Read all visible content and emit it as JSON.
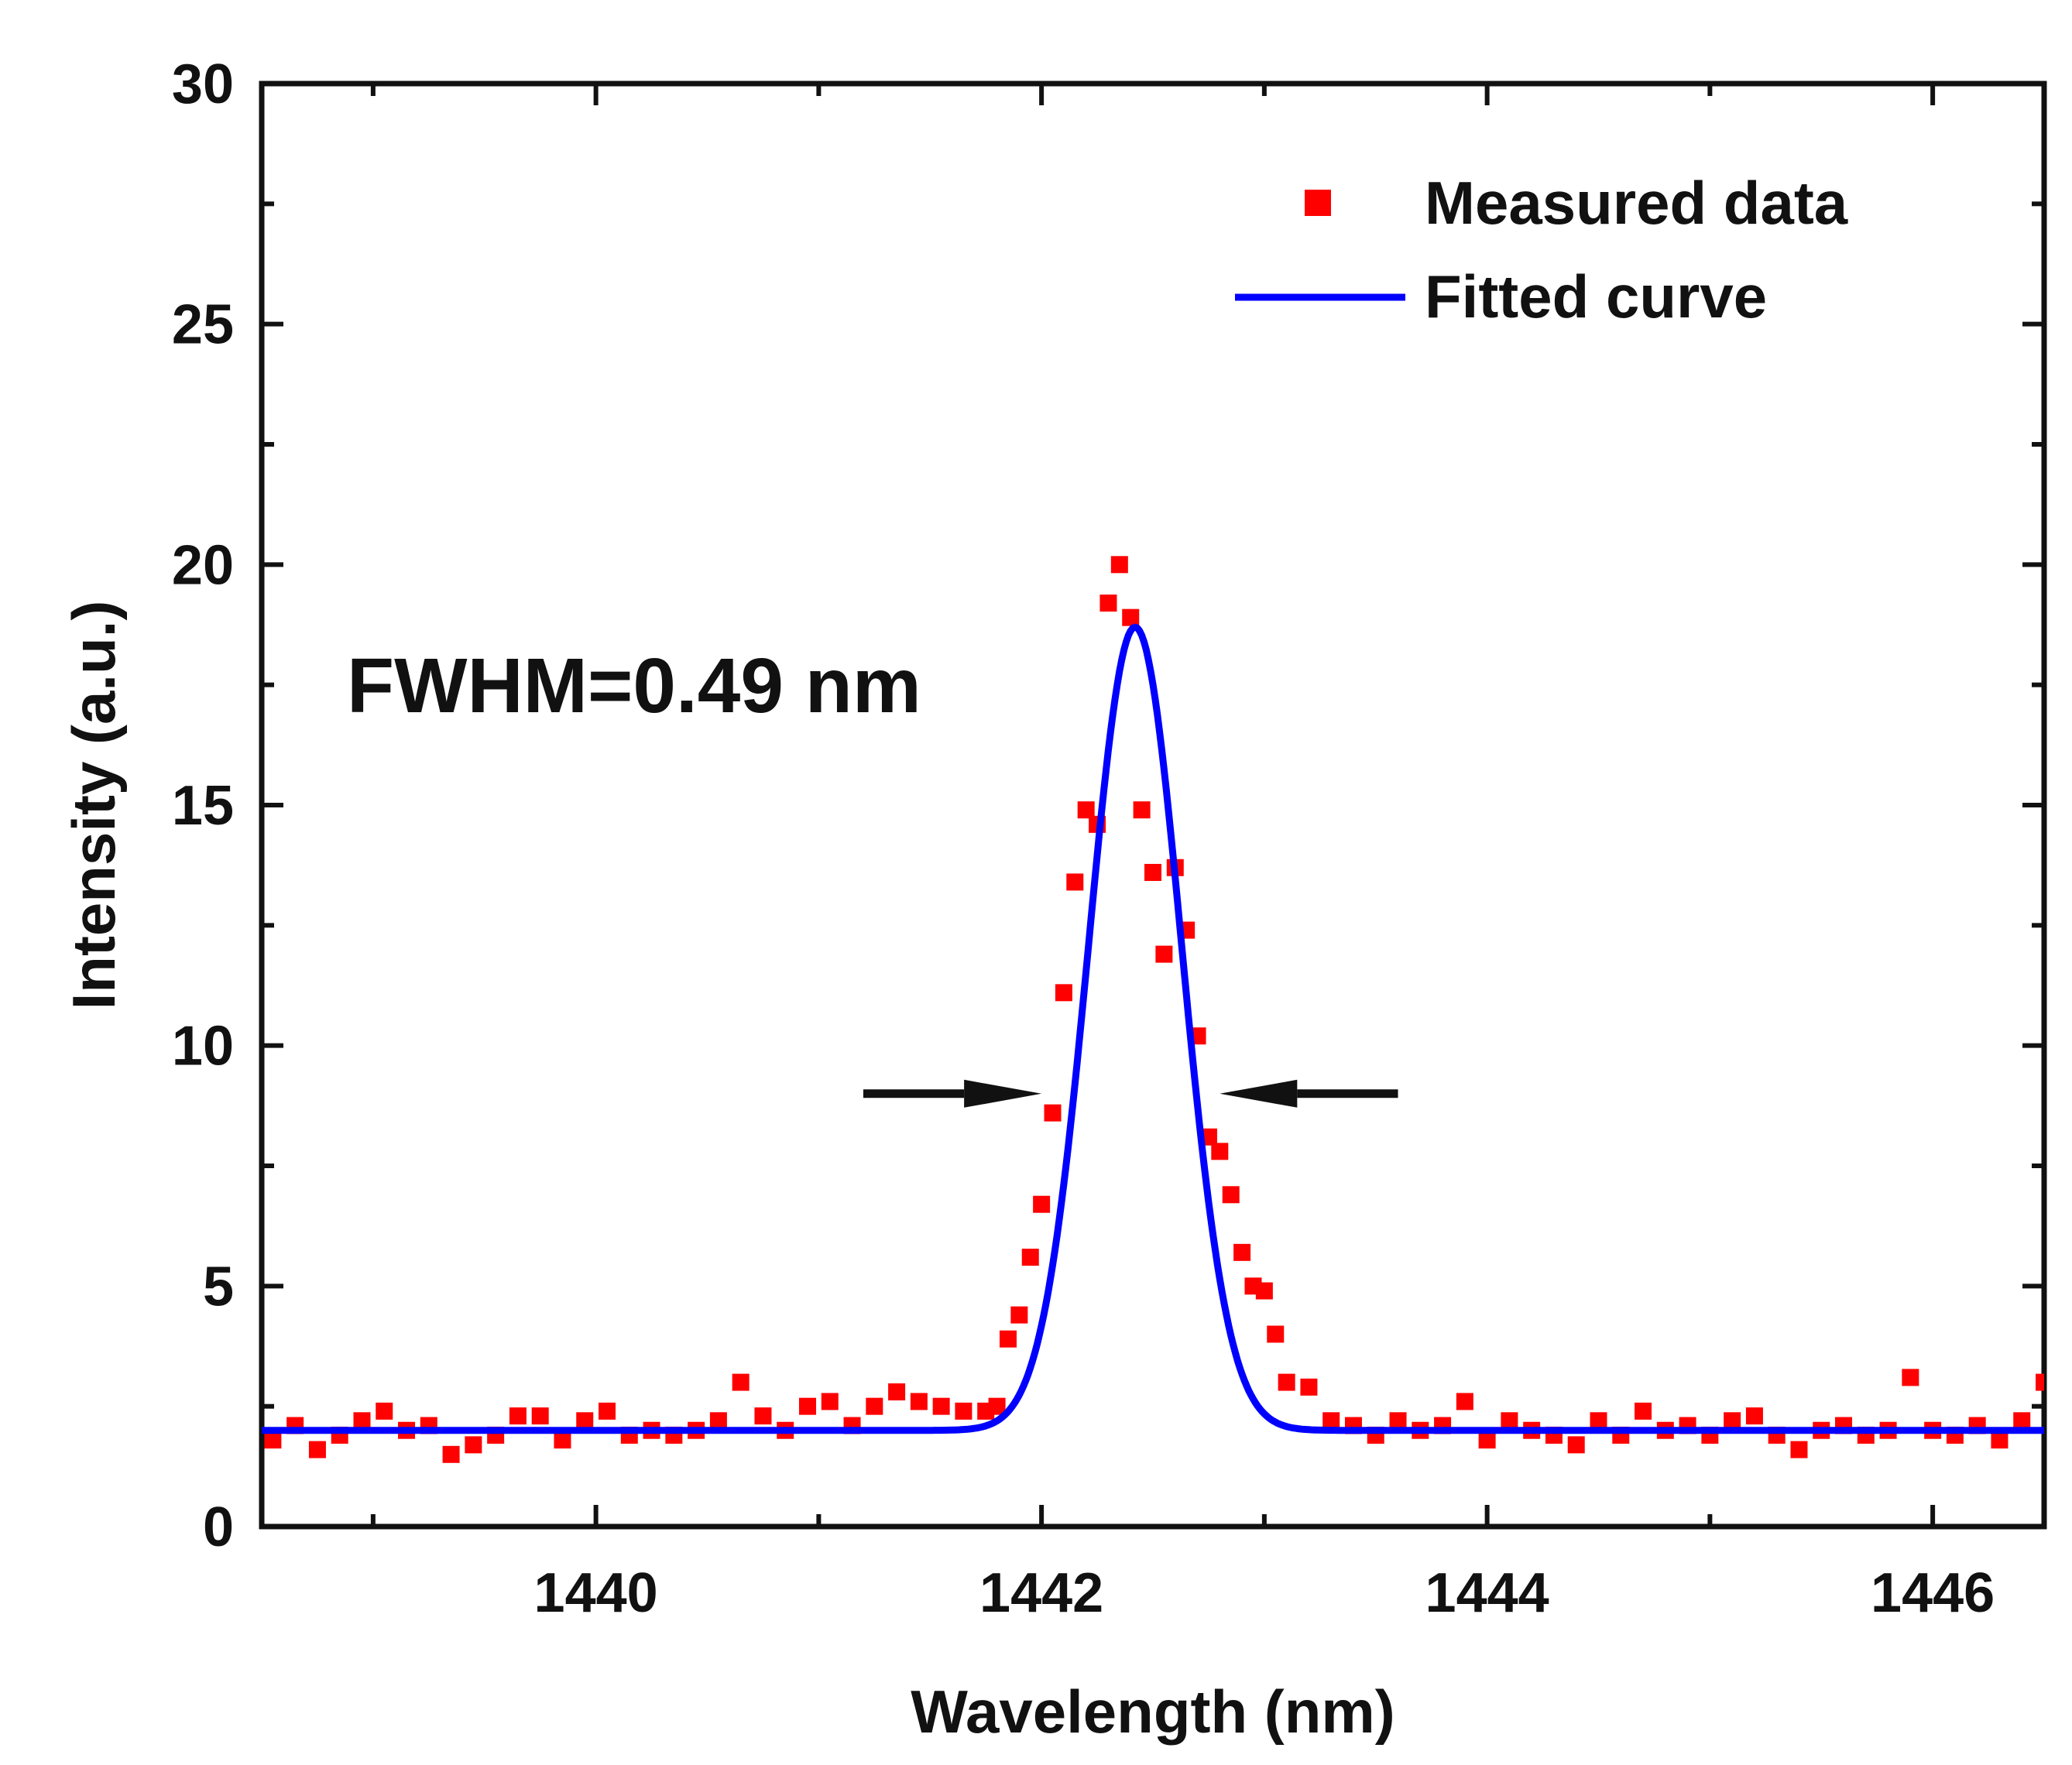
{
  "chart_data": {
    "type": "scatter",
    "xlabel": "Wavelength (nm)",
    "ylabel": "Intensity (a.u.)",
    "xlim": [
      1438.5,
      1446.5
    ],
    "ylim": [
      0,
      30
    ],
    "x_ticks": [
      1440,
      1442,
      1444,
      1446
    ],
    "x_tick_labels": [
      "1440",
      "1442",
      "1444",
      "1446"
    ],
    "y_ticks": [
      0,
      5,
      10,
      15,
      20,
      25,
      30
    ],
    "y_tick_labels": [
      "0",
      "5",
      "10",
      "15",
      "20",
      "25",
      "30"
    ],
    "grid": false,
    "legend_position": "top-right",
    "annotation": "FWHM=0.49 nm",
    "fwhm_arrows": {
      "y": 9.0,
      "left": [
        1441.2,
        1442.0
      ],
      "right": [
        1443.6,
        1442.8
      ]
    },
    "series": [
      {
        "name": "Measured data",
        "kind": "scatter",
        "marker": "square",
        "color": "#ff0000",
        "x": [
          1438.55,
          1438.65,
          1438.75,
          1438.85,
          1438.95,
          1439.05,
          1439.15,
          1439.25,
          1439.35,
          1439.45,
          1439.55,
          1439.65,
          1439.75,
          1439.85,
          1439.95,
          1440.05,
          1440.15,
          1440.25,
          1440.35,
          1440.45,
          1440.55,
          1440.65,
          1440.75,
          1440.85,
          1440.95,
          1441.05,
          1441.15,
          1441.25,
          1441.35,
          1441.45,
          1441.55,
          1441.65,
          1441.75,
          1441.8,
          1441.85,
          1441.9,
          1441.95,
          1442.0,
          1442.05,
          1442.1,
          1442.15,
          1442.2,
          1442.25,
          1442.3,
          1442.35,
          1442.4,
          1442.45,
          1442.5,
          1442.55,
          1442.6,
          1442.65,
          1442.7,
          1442.75,
          1442.8,
          1442.85,
          1442.9,
          1442.95,
          1443.0,
          1443.05,
          1443.1,
          1443.2,
          1443.3,
          1443.4,
          1443.5,
          1443.6,
          1443.7,
          1443.8,
          1443.9,
          1444.0,
          1444.1,
          1444.2,
          1444.3,
          1444.4,
          1444.5,
          1444.6,
          1444.7,
          1444.8,
          1444.9,
          1445.0,
          1445.1,
          1445.2,
          1445.3,
          1445.4,
          1445.5,
          1445.6,
          1445.7,
          1445.8,
          1445.9,
          1446.0,
          1446.1,
          1446.2,
          1446.3,
          1446.4,
          1446.5
        ],
        "y": [
          1.8,
          2.1,
          1.6,
          1.9,
          2.2,
          2.4,
          2.0,
          2.1,
          1.5,
          1.7,
          1.9,
          2.3,
          2.3,
          1.8,
          2.2,
          2.4,
          1.9,
          2.0,
          1.9,
          2.0,
          2.2,
          3.0,
          2.3,
          2.0,
          2.5,
          2.6,
          2.1,
          2.5,
          2.8,
          2.6,
          2.5,
          2.4,
          2.4,
          2.5,
          3.9,
          4.4,
          5.6,
          6.7,
          8.6,
          11.1,
          13.4,
          14.9,
          14.6,
          19.2,
          20.0,
          18.9,
          14.9,
          13.6,
          11.9,
          13.7,
          12.4,
          10.2,
          8.1,
          7.8,
          6.9,
          5.7,
          5.0,
          4.9,
          4.0,
          3.0,
          2.9,
          2.2,
          2.1,
          1.9,
          2.2,
          2.0,
          2.1,
          2.6,
          1.8,
          2.2,
          2.0,
          1.9,
          1.7,
          2.2,
          1.9,
          2.4,
          2.0,
          2.1,
          1.9,
          2.2,
          2.3,
          1.9,
          1.6,
          2.0,
          2.1,
          1.9,
          2.0,
          3.1,
          2.0,
          1.9,
          2.1,
          1.8,
          2.2,
          3.0
        ]
      },
      {
        "name": "Fitted curve",
        "kind": "gaussian-fit",
        "color": "#0000ff",
        "baseline": 2.0,
        "amplitude": 16.7,
        "center": 1442.42,
        "fwhm": 0.49
      }
    ]
  }
}
